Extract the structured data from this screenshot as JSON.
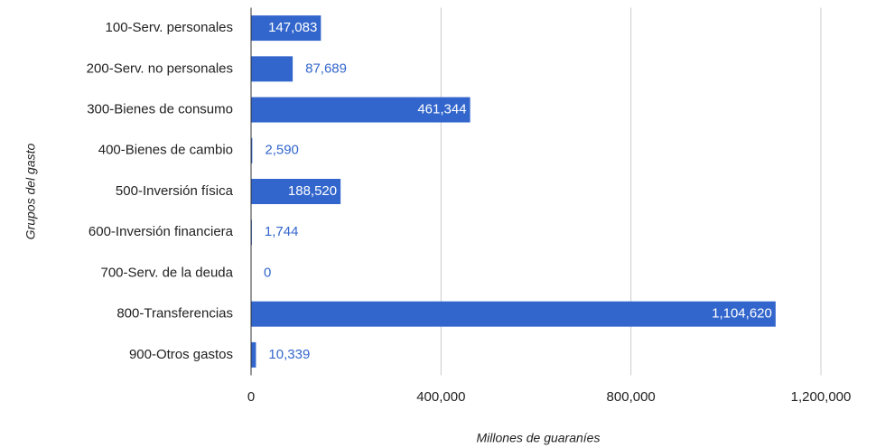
{
  "chart_data": {
    "type": "bar",
    "orientation": "horizontal",
    "x_label": "Millones de guaraníes",
    "y_label": "Grupos del gasto",
    "categories": [
      "100-Serv. personales",
      "200-Serv. no personales",
      "300-Bienes de consumo",
      "400-Bienes de cambio",
      "500-Inversión física",
      "600-Inversión financiera",
      "700-Serv. de la deuda",
      "800-Transferencias",
      "900-Otros gastos"
    ],
    "values": [
      147083,
      87689,
      461344,
      2590,
      188520,
      1744,
      0,
      1104620,
      10339
    ],
    "value_labels": [
      "147,083",
      "87,689",
      "461,344",
      "2,590",
      "188,520",
      "1,744",
      "0",
      "1,104,620",
      "10,339"
    ],
    "color": "#3366cc",
    "xlim": [
      0,
      1200000
    ],
    "xticks": [
      0,
      {
        "value": 400000,
        "label": "400,000"
      },
      {
        "value": 800000,
        "label": "800,000"
      },
      {
        "value": 1200000,
        "label": "1,200,000"
      }
    ],
    "grid": true
  }
}
